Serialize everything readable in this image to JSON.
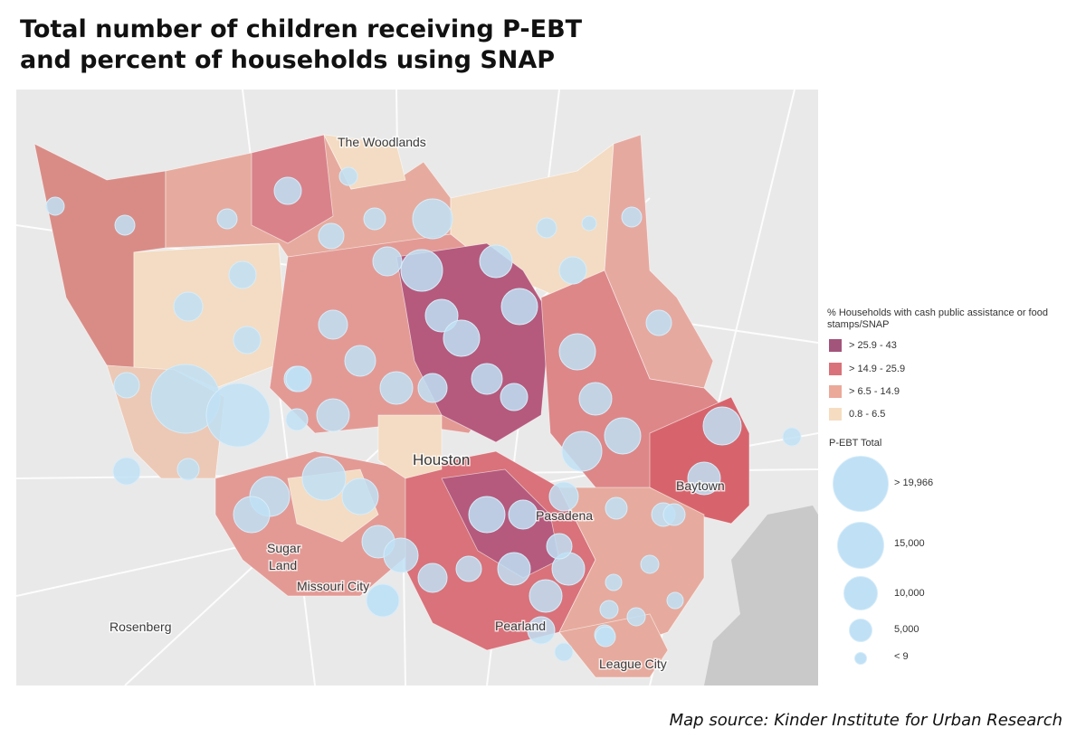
{
  "title": {
    "line1": "Total number of children receiving P-EBT",
    "line2": "and percent of households using SNAP"
  },
  "places": [
    {
      "name": "The Woodlands"
    },
    {
      "name": "Houston"
    },
    {
      "name": "Baytown"
    },
    {
      "name": "Pasadena"
    },
    {
      "name": "Sugar"
    },
    {
      "name": "Land"
    },
    {
      "name": "Missouri City"
    },
    {
      "name": "Rosenberg"
    },
    {
      "name": "Pearland"
    },
    {
      "name": "League City"
    }
  ],
  "legend": {
    "snap_title": "% Households with cash public assistance or food stamps/SNAP",
    "snap_classes": [
      {
        "label": "> 25.9 - 43",
        "color": "#a3547a"
      },
      {
        "label": "> 14.9 - 25.9",
        "color": "#d9727a"
      },
      {
        "label": "> 6.5 - 14.9",
        "color": "#eba99a"
      },
      {
        "label": "0.8 - 6.5",
        "color": "#f6ddc2"
      }
    ],
    "size_title": "P-EBT Total",
    "size_classes": [
      {
        "label": "> 19,966"
      },
      {
        "label": "15,000"
      },
      {
        "label": "10,000"
      },
      {
        "label": "5,000"
      },
      {
        "label": "< 9"
      }
    ],
    "bubble_color": "#bfe0f5"
  },
  "source": "Map source: Kinder Institute for Urban Research"
}
